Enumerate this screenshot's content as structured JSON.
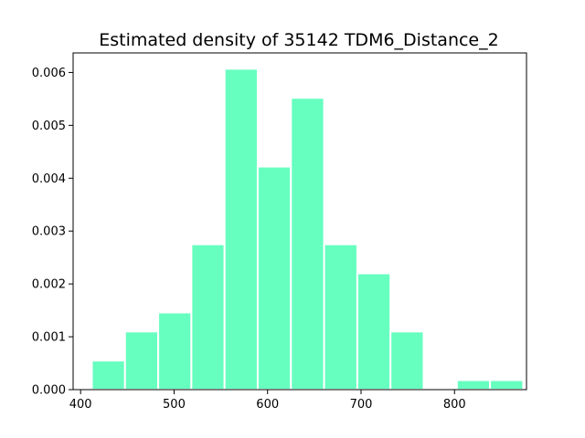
{
  "chart_data": {
    "type": "bar",
    "title": "Estimated density of 35142 TDM6_Distance_2",
    "xlabel": "",
    "ylabel": "",
    "xlim": [
      392,
      877
    ],
    "ylim": [
      0,
      0.00637
    ],
    "xticks": [
      400,
      500,
      600,
      700,
      800
    ],
    "xtick_labels": [
      "400",
      "500",
      "600",
      "700",
      "800"
    ],
    "yticks": [
      0,
      0.001,
      0.002,
      0.003,
      0.004,
      0.005,
      0.006
    ],
    "ytick_labels": [
      "0.000",
      "0.001",
      "0.002",
      "0.003",
      "0.004",
      "0.005",
      "0.006"
    ],
    "bar_color": "#66ffbf",
    "grid": false,
    "bins": [
      {
        "x0": 412.0,
        "x1": 447.5,
        "value": 0.00055
      },
      {
        "x0": 447.5,
        "x1": 483.0,
        "value": 0.0011
      },
      {
        "x0": 483.0,
        "x1": 518.5,
        "value": 0.00146
      },
      {
        "x0": 518.5,
        "x1": 554.0,
        "value": 0.00275
      },
      {
        "x0": 554.0,
        "x1": 589.5,
        "value": 0.00607
      },
      {
        "x0": 589.5,
        "x1": 625.0,
        "value": 0.00422
      },
      {
        "x0": 625.0,
        "x1": 660.5,
        "value": 0.00552
      },
      {
        "x0": 660.5,
        "x1": 696.0,
        "value": 0.00275
      },
      {
        "x0": 696.0,
        "x1": 731.5,
        "value": 0.0022
      },
      {
        "x0": 731.5,
        "x1": 767.0,
        "value": 0.0011
      },
      {
        "x0": 767.0,
        "x1": 802.5,
        "value": 0
      },
      {
        "x0": 802.5,
        "x1": 838.0,
        "value": 0.00018
      },
      {
        "x0": 838.0,
        "x1": 873.5,
        "value": 0.00018
      }
    ]
  }
}
